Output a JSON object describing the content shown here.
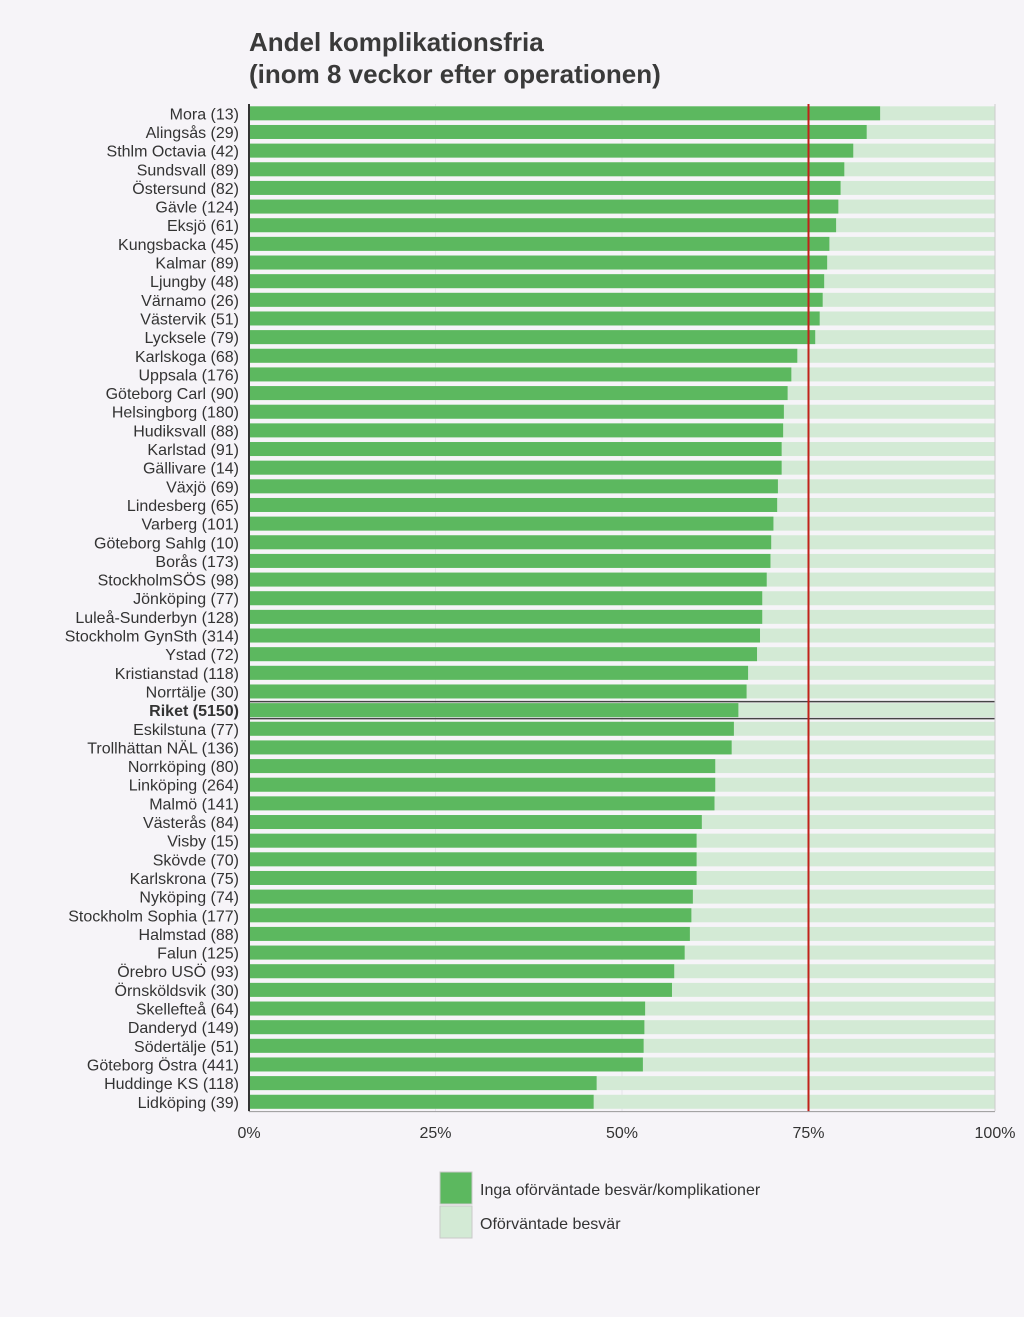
{
  "chart_data": {
    "type": "bar",
    "orientation": "horizontal",
    "stacked": true,
    "title_lines": [
      "Andel komplikationsfria",
      "(inom 8 veckor efter operationen)"
    ],
    "categories": [
      "Mora (13)",
      "Alingsås (29)",
      "Sthlm Octavia (42)",
      "Sundsvall (89)",
      "Östersund (82)",
      "Gävle (124)",
      "Eksjö (61)",
      "Kungsbacka (45)",
      "Kalmar (89)",
      "Ljungby (48)",
      "Värnamo (26)",
      "Västervik (51)",
      "Lycksele (79)",
      "Karlskoga (68)",
      "Uppsala (176)",
      "Göteborg Carl (90)",
      "Helsingborg (180)",
      "Hudiksvall (88)",
      "Karlstad (91)",
      "Gällivare (14)",
      "Växjö (69)",
      "Lindesberg (65)",
      "Varberg (101)",
      "Göteborg Sahlg (10)",
      "Borås (173)",
      "StockholmSÖS (98)",
      "Jönköping (77)",
      "Luleå-Sunderbyn (128)",
      "Stockholm GynSth (314)",
      "Ystad (72)",
      "Kristianstad (118)",
      "Norrtälje (30)",
      "Riket (5150)",
      "Eskilstuna (77)",
      "Trollhättan NÄL (136)",
      "Norrköping (80)",
      "Linköping (264)",
      "Malmö (141)",
      "Västerås (84)",
      "Visby (15)",
      "Skövde (70)",
      "Karlskrona (75)",
      "Nyköping (74)",
      "Stockholm Sophia (177)",
      "Halmstad (88)",
      "Falun (125)",
      "Örebro USÖ (93)",
      "Örnsköldsvik (30)",
      "Skellefteå (64)",
      "Danderyd (149)",
      "Södertälje (51)",
      "Göteborg Östra (441)",
      "Huddinge KS (118)",
      "Lidköping (39)"
    ],
    "highlight_category": "Riket (5150)",
    "series": [
      {
        "name": "Inga oförväntade besvär/komplikationer",
        "color": "#5cb85f",
        "values": [
          84.6,
          82.8,
          81.0,
          79.8,
          79.3,
          79.0,
          78.7,
          77.8,
          77.5,
          77.1,
          76.9,
          76.5,
          75.9,
          73.5,
          72.7,
          72.2,
          71.7,
          71.6,
          71.4,
          71.4,
          70.9,
          70.8,
          70.3,
          70.0,
          69.9,
          69.4,
          68.8,
          68.8,
          68.5,
          68.1,
          66.9,
          66.7,
          65.6,
          65.0,
          64.7,
          62.5,
          62.5,
          62.4,
          60.7,
          60.0,
          60.0,
          60.0,
          59.5,
          59.3,
          59.1,
          58.4,
          57.0,
          56.7,
          53.1,
          53.0,
          52.9,
          52.8,
          46.6,
          46.2
        ]
      },
      {
        "name": "Oförväntade besvär",
        "color": "#d3ead5"
      }
    ],
    "reference_line": {
      "value": 75,
      "color": "#c0221a"
    },
    "x_ticks": [
      "0%",
      "25%",
      "50%",
      "75%",
      "100%"
    ],
    "xlim": [
      0,
      100
    ],
    "xlabel": "",
    "ylabel": "",
    "grid": true,
    "legend_position": "bottom"
  }
}
